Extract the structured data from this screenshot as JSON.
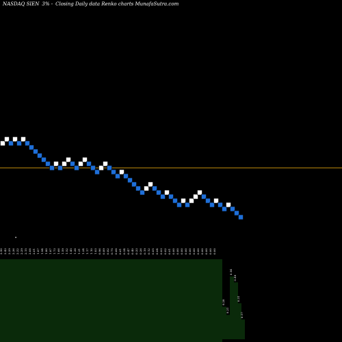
{
  "header": {
    "symbol": "NASDAQ SIEN",
    "change": "3% -",
    "description": "Closing Daily data Renko charts MunafaSutra.com"
  },
  "chart_data": {
    "type": "renko",
    "title": "NASDAQ SIEN 3% - Closing Daily data Renko charts MunafaSutra.com",
    "bricks": [
      {
        "price": 2.43,
        "dir": "up"
      },
      {
        "price": 2.5,
        "dir": "up"
      },
      {
        "price": 2.43,
        "dir": "down"
      },
      {
        "price": 2.5,
        "dir": "up"
      },
      {
        "price": 2.43,
        "dir": "down"
      },
      {
        "price": 2.5,
        "dir": "up"
      },
      {
        "price": 2.43,
        "dir": "down"
      },
      {
        "price": 2.36,
        "dir": "down"
      },
      {
        "price": 2.29,
        "dir": "down"
      },
      {
        "price": 2.22,
        "dir": "down"
      },
      {
        "price": 2.15,
        "dir": "down"
      },
      {
        "price": 2.08,
        "dir": "down"
      },
      {
        "price": 2.01,
        "dir": "down"
      },
      {
        "price": 2.08,
        "dir": "up"
      },
      {
        "price": 2.01,
        "dir": "down"
      },
      {
        "price": 2.08,
        "dir": "up"
      },
      {
        "price": 2.15,
        "dir": "up"
      },
      {
        "price": 2.08,
        "dir": "down"
      },
      {
        "price": 2.01,
        "dir": "down"
      },
      {
        "price": 2.08,
        "dir": "up"
      },
      {
        "price": 2.15,
        "dir": "up"
      },
      {
        "price": 2.08,
        "dir": "down"
      },
      {
        "price": 2.01,
        "dir": "down"
      },
      {
        "price": 1.94,
        "dir": "down"
      },
      {
        "price": 2.01,
        "dir": "up"
      },
      {
        "price": 2.08,
        "dir": "up"
      },
      {
        "price": 2.01,
        "dir": "down"
      },
      {
        "price": 1.94,
        "dir": "down"
      },
      {
        "price": 1.87,
        "dir": "down"
      },
      {
        "price": 1.94,
        "dir": "up"
      },
      {
        "price": 1.87,
        "dir": "down"
      },
      {
        "price": 1.8,
        "dir": "down"
      },
      {
        "price": 1.73,
        "dir": "down"
      },
      {
        "price": 1.66,
        "dir": "down"
      },
      {
        "price": 1.59,
        "dir": "down"
      },
      {
        "price": 1.66,
        "dir": "up"
      },
      {
        "price": 1.73,
        "dir": "up"
      },
      {
        "price": 1.66,
        "dir": "down"
      },
      {
        "price": 1.59,
        "dir": "down"
      },
      {
        "price": 1.52,
        "dir": "down"
      },
      {
        "price": 1.59,
        "dir": "up"
      },
      {
        "price": 1.52,
        "dir": "down"
      },
      {
        "price": 1.45,
        "dir": "down"
      },
      {
        "price": 1.38,
        "dir": "down"
      },
      {
        "price": 1.45,
        "dir": "up"
      },
      {
        "price": 1.38,
        "dir": "down"
      },
      {
        "price": 1.45,
        "dir": "up"
      },
      {
        "price": 1.52,
        "dir": "up"
      },
      {
        "price": 1.59,
        "dir": "up"
      },
      {
        "price": 1.52,
        "dir": "down"
      },
      {
        "price": 1.45,
        "dir": "down"
      },
      {
        "price": 1.38,
        "dir": "down"
      },
      {
        "price": 1.45,
        "dir": "up"
      },
      {
        "price": 1.38,
        "dir": "down"
      },
      {
        "price": 1.31,
        "dir": "down"
      },
      {
        "price": 1.38,
        "dir": "up"
      },
      {
        "price": 1.31,
        "dir": "down"
      },
      {
        "price": 1.24,
        "dir": "down"
      },
      {
        "price": 1.17,
        "dir": "down"
      }
    ],
    "price_line": {
      "price": 2.01,
      "color": "#b8860b"
    },
    "colors": {
      "up": "#ffffff",
      "down": "#1e6fd9"
    },
    "volume_tick_labels": [
      "2.50",
      "2.43",
      "2.29",
      "2.36",
      "2.22",
      "2.29",
      "2.15",
      "2.08",
      "2.01",
      "1.87",
      "1.94",
      "1.80",
      "1.87",
      "1.73",
      "1.66",
      "1.59",
      "1.52",
      "1.45",
      "1.38",
      "1.31",
      "1.24",
      "1.17",
      "1.10",
      "1.03",
      "0.96",
      "0.89",
      "0.82",
      "0.75",
      "0.68",
      "0.61",
      "0.54",
      "0.47",
      "0.40",
      "0.33",
      "0.26",
      "0.19",
      "0.12",
      "0.05",
      "0.04",
      "0.03",
      "0.02",
      "0.01",
      "0.00",
      "0.00",
      "0.00",
      "0.00",
      "0.00",
      "0.00",
      "0.00",
      "0.00",
      "0.00",
      "0.00",
      "0.00"
    ],
    "volume_fill_color": "#0a2a0a",
    "volume_bars": [
      {
        "label": "0.28",
        "value": 0.28
      },
      {
        "label": "0.21",
        "value": 0.21
      },
      {
        "label": "0.54",
        "value": 0.54
      },
      {
        "label": "0.49",
        "value": 0.49
      },
      {
        "label": "0.31",
        "value": 0.31
      },
      {
        "label": "0.17",
        "value": 0.17
      }
    ],
    "xlabel": "",
    "ylabel": ""
  }
}
